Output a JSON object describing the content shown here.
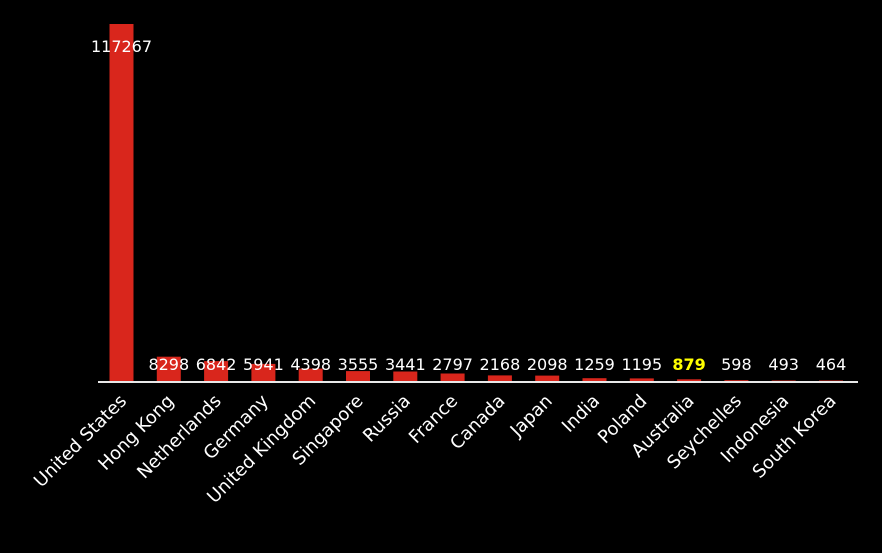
{
  "chart_data": {
    "type": "bar",
    "categories": [
      "United States",
      "Hong Kong",
      "Netherlands",
      "Germany",
      "United Kingdom",
      "Singapore",
      "Russia",
      "France",
      "Canada",
      "Japan",
      "India",
      "Poland",
      "Australia",
      "Seychelles",
      "Indonesia",
      "South Korea"
    ],
    "values": [
      117267,
      8298,
      6842,
      5941,
      4398,
      3555,
      3441,
      2797,
      2168,
      2098,
      1259,
      1195,
      879,
      598,
      493,
      464
    ],
    "value_labels": [
      "117267",
      "8298",
      "6842",
      "5941",
      "4398",
      "3555",
      "3441",
      "2797",
      "2168",
      "2098",
      "1259",
      "1195",
      "879",
      "598",
      "493",
      "464"
    ],
    "highlight_category": "Australia",
    "title": "",
    "xlabel": "",
    "ylabel": "",
    "ylim": [
      0,
      117267
    ],
    "grid": false,
    "legend": "none"
  },
  "colors": {
    "background": "#000000",
    "bar": "#d9261c",
    "axis": "#e8e8e8",
    "label": "#ffffff",
    "highlight_label": "#ffff00"
  }
}
